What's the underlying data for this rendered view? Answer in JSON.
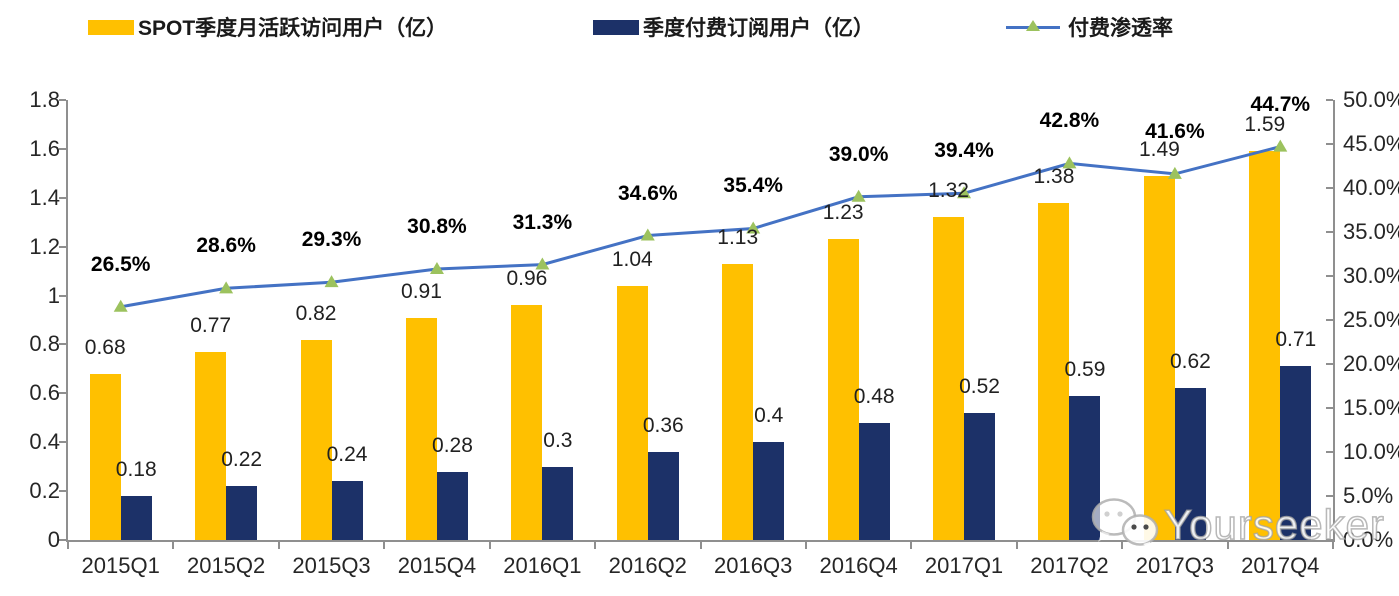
{
  "legend": {
    "items": [
      {
        "label": "SPOT季度月活跃访问用户（亿）",
        "color": "#FFC000",
        "type": "bar"
      },
      {
        "label": "季度付费订阅用户（亿）",
        "color": "#1C3168",
        "type": "bar"
      },
      {
        "label": "付费渗透率",
        "color": "#4472C4",
        "marker_color": "#9CC25E",
        "type": "line"
      }
    ]
  },
  "watermark": {
    "text": "Yourseeker",
    "icon": "wechat-icon"
  },
  "colors": {
    "mau_bar": "#FFC000",
    "subs_bar": "#1C3168",
    "penetration_line": "#4472C4",
    "penetration_marker": "#9CC25E",
    "axis": "#8f8f8f"
  },
  "chart_data": {
    "type": "bar",
    "subtype": "grouped bars + line on secondary axis",
    "categories": [
      "2015Q1",
      "2015Q2",
      "2015Q3",
      "2015Q4",
      "2016Q1",
      "2016Q2",
      "2016Q3",
      "2016Q4",
      "2017Q1",
      "2017Q2",
      "2017Q3",
      "2017Q4"
    ],
    "series": [
      {
        "name": "SPOT季度月活跃访问用户（亿）",
        "type": "bar",
        "axis": "left",
        "color": "#FFC000",
        "values": [
          0.68,
          0.77,
          0.82,
          0.91,
          0.96,
          1.04,
          1.13,
          1.23,
          1.32,
          1.38,
          1.49,
          1.59
        ],
        "labels": [
          "0.68",
          "0.77",
          "0.82",
          "0.91",
          "0.96",
          "1.04",
          "1.13",
          "1.23",
          "1.32",
          "1.38",
          "1.49",
          "1.59"
        ]
      },
      {
        "name": "季度付费订阅用户（亿）",
        "type": "bar",
        "axis": "left",
        "color": "#1C3168",
        "values": [
          0.18,
          0.22,
          0.24,
          0.28,
          0.3,
          0.36,
          0.4,
          0.48,
          0.52,
          0.59,
          0.62,
          0.71
        ],
        "labels": [
          "0.18",
          "0.22",
          "0.24",
          "0.28",
          "0.3",
          "0.36",
          "0.4",
          "0.48",
          "0.52",
          "0.59",
          "0.62",
          "0.71"
        ]
      },
      {
        "name": "付费渗透率",
        "type": "line",
        "axis": "right",
        "color": "#4472C4",
        "marker": "triangle",
        "marker_color": "#9CC25E",
        "values": [
          26.5,
          28.6,
          29.3,
          30.8,
          31.3,
          34.6,
          35.4,
          39.0,
          39.4,
          42.8,
          41.6,
          44.7
        ],
        "labels": [
          "26.5%",
          "28.6%",
          "29.3%",
          "30.8%",
          "31.3%",
          "34.6%",
          "35.4%",
          "39.0%",
          "39.4%",
          "42.8%",
          "41.6%",
          "44.7%"
        ]
      }
    ],
    "left_axis": {
      "min": 0,
      "max": 1.8,
      "step": 0.2,
      "tick_labels": [
        "0",
        "0.2",
        "0.4",
        "0.6",
        "0.8",
        "1",
        "1.2",
        "1.4",
        "1.6",
        "1.8"
      ]
    },
    "right_axis": {
      "min": 0,
      "max": 50,
      "step": 5,
      "tick_labels": [
        "0.0%",
        "5.0%",
        "10.0%",
        "15.0%",
        "20.0%",
        "25.0%",
        "30.0%",
        "35.0%",
        "40.0%",
        "45.0%",
        "50.0%"
      ]
    },
    "grid": false,
    "legend_position": "top"
  }
}
